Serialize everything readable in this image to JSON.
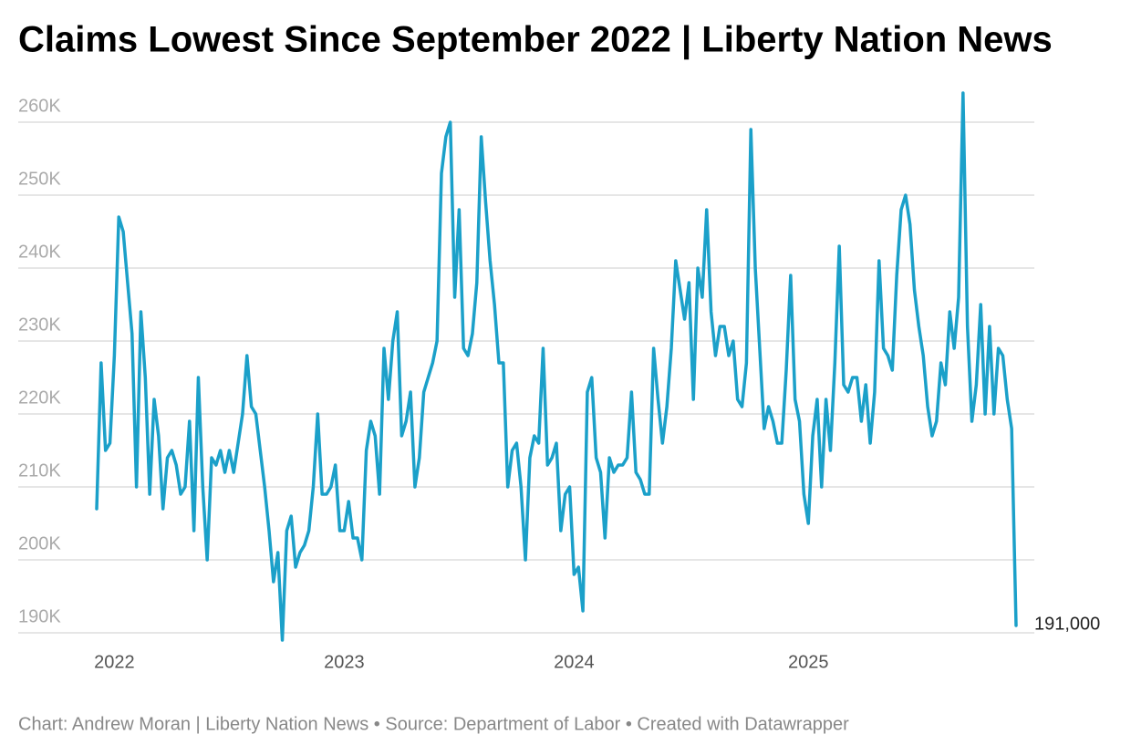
{
  "chart_data": {
    "type": "line",
    "title": "Claims Lowest Since September 2022 | Liberty Nation News",
    "source": "Chart: Andrew Moran | Liberty Nation News • Source: Department of Labor • Created with Datawrapper",
    "color": "#1ba0c9",
    "grid": true,
    "ylim": [
      189000,
      265000
    ],
    "yticks": [
      {
        "value": 190000,
        "label": "190K"
      },
      {
        "value": 200000,
        "label": "200K"
      },
      {
        "value": 210000,
        "label": "210K"
      },
      {
        "value": 220000,
        "label": "220K"
      },
      {
        "value": 230000,
        "label": "230K"
      },
      {
        "value": 240000,
        "label": "240K"
      },
      {
        "value": 250000,
        "label": "250K"
      },
      {
        "value": 260000,
        "label": "260K"
      }
    ],
    "end_label": "191,000",
    "categories": [
      null,
      null,
      null,
      null,
      "2022",
      null,
      null,
      null,
      null,
      null,
      null,
      null,
      null,
      null,
      null,
      null,
      null,
      null,
      null,
      null,
      null,
      null,
      null,
      null,
      null,
      null,
      null,
      null,
      null,
      null,
      null,
      null,
      null,
      null,
      null,
      null,
      null,
      null,
      null,
      null,
      null,
      null,
      null,
      null,
      null,
      null,
      null,
      null,
      null,
      null,
      null,
      null,
      null,
      null,
      null,
      null,
      "2023",
      null,
      null,
      null,
      null,
      null,
      null,
      null,
      null,
      null,
      null,
      null,
      null,
      null,
      null,
      null,
      null,
      null,
      null,
      null,
      null,
      null,
      null,
      null,
      null,
      null,
      null,
      null,
      null,
      null,
      null,
      null,
      null,
      null,
      null,
      null,
      null,
      null,
      null,
      null,
      null,
      null,
      null,
      null,
      null,
      null,
      null,
      null,
      null,
      null,
      null,
      null,
      "2024",
      null,
      null,
      null,
      null,
      null,
      null,
      null,
      null,
      null,
      null,
      null,
      null,
      null,
      null,
      null,
      null,
      null,
      null,
      null,
      null,
      null,
      null,
      null,
      null,
      null,
      null,
      null,
      null,
      null,
      null,
      null,
      null,
      null,
      null,
      null,
      null,
      null,
      null,
      null,
      null,
      null,
      null,
      null,
      null,
      null,
      null,
      null,
      null,
      null,
      null,
      null,
      null,
      "2025",
      null,
      null,
      null,
      null,
      null,
      null,
      null,
      null,
      null,
      null,
      null,
      null,
      null,
      null,
      null,
      null,
      null,
      null,
      null,
      null,
      null,
      null,
      null,
      null,
      null,
      null,
      null,
      null,
      null,
      null,
      null,
      null,
      null,
      null,
      null,
      null,
      null,
      null,
      null,
      null,
      null,
      null,
      null,
      null,
      null,
      null,
      null
    ],
    "values": [
      207000,
      227000,
      215000,
      216000,
      228000,
      247000,
      245000,
      238000,
      231000,
      210000,
      234000,
      225000,
      209000,
      222000,
      217000,
      207000,
      214000,
      215000,
      213000,
      209000,
      210000,
      219000,
      204000,
      225000,
      210000,
      200000,
      214000,
      213000,
      215000,
      212000,
      215000,
      212000,
      216000,
      220000,
      228000,
      221000,
      220000,
      215000,
      210000,
      204000,
      197000,
      201000,
      189000,
      204000,
      206000,
      199000,
      201000,
      202000,
      204000,
      210000,
      220000,
      209000,
      209000,
      210000,
      213000,
      204000,
      204000,
      208000,
      203000,
      203000,
      200000,
      215000,
      219000,
      217000,
      209000,
      229000,
      222000,
      230000,
      234000,
      217000,
      219000,
      223000,
      210000,
      214000,
      223000,
      225000,
      227000,
      230000,
      253000,
      258000,
      260000,
      236000,
      248000,
      229000,
      228000,
      231000,
      238000,
      258000,
      249000,
      241000,
      235000,
      227000,
      227000,
      210000,
      215000,
      216000,
      210000,
      200000,
      214000,
      217000,
      216000,
      229000,
      213000,
      214000,
      216000,
      204000,
      209000,
      210000,
      198000,
      199000,
      193000,
      223000,
      225000,
      214000,
      212000,
      203000,
      214000,
      212000,
      213000,
      213000,
      214000,
      223000,
      212000,
      211000,
      209000,
      209000,
      229000,
      222000,
      216000,
      221000,
      229000,
      241000,
      237000,
      233000,
      238000,
      222000,
      240000,
      236000,
      248000,
      234000,
      228000,
      232000,
      232000,
      228000,
      230000,
      222000,
      221000,
      227000,
      259000,
      240000,
      229000,
      218000,
      221000,
      219000,
      216000,
      216000,
      226000,
      239000,
      222000,
      219000,
      209000,
      205000,
      217000,
      222000,
      210000,
      222000,
      215000,
      227000,
      243000,
      224000,
      223000,
      225000,
      225000,
      219000,
      224000,
      216000,
      223000,
      241000,
      229000,
      228000,
      226000,
      239000,
      248000,
      250000,
      246000,
      237000,
      232000,
      228000,
      221000,
      217000,
      219000,
      227000,
      224000,
      234000,
      229000,
      236000,
      264000,
      232000,
      219000,
      224000,
      235000,
      220000,
      232000,
      220000,
      229000,
      228000,
      222000,
      218000,
      191000
    ]
  }
}
